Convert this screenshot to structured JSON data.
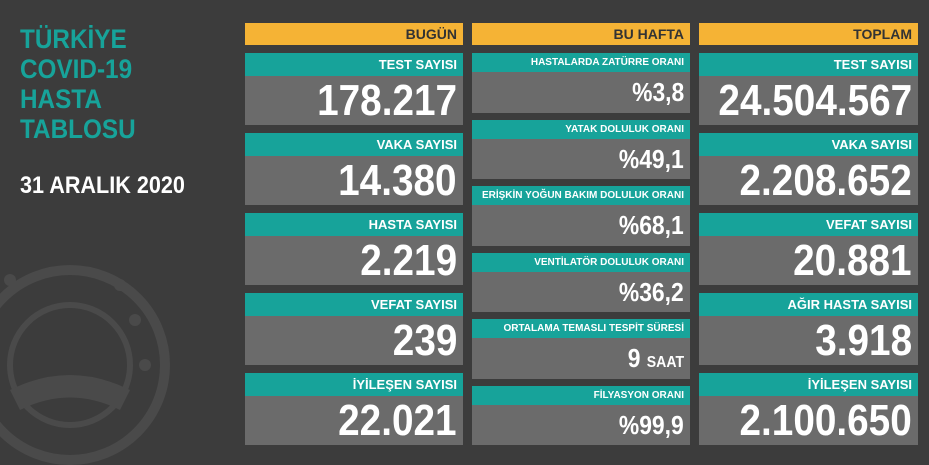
{
  "title_lines": [
    "TÜRKİYE",
    "COVID-19",
    "HASTA",
    "TABLOSU"
  ],
  "date": "31 ARALIK 2020",
  "columns": [
    {
      "header": "BUGÜN",
      "cards": [
        {
          "label": "TEST SAYISI",
          "value": "178.217"
        },
        {
          "label": "VAKA SAYISI",
          "value": "14.380"
        },
        {
          "label": "HASTA SAYISI",
          "value": "2.219"
        },
        {
          "label": "VEFAT SAYISI",
          "value": "239"
        },
        {
          "label": "İYİLEŞEN SAYISI",
          "value": "22.021"
        }
      ]
    },
    {
      "header": "BU HAFTA",
      "cards": [
        {
          "label": "HASTALARDA ZATÜRRE ORANI",
          "value": "%3,8"
        },
        {
          "label": "YATAK DOLULUK ORANI",
          "value": "%49,1"
        },
        {
          "label": "ERİŞKİN YOĞUN BAKIM DOLULUK ORANI",
          "value": "%68,1"
        },
        {
          "label": "VENTİLATÖR DOLULUK ORANI",
          "value": "%36,2"
        },
        {
          "label": "ORTALAMA TEMASLI TESPİT SÜRESİ",
          "value": "9",
          "unit": "SAAT"
        },
        {
          "label": "FİLYASYON ORANI",
          "value": "%99,9"
        }
      ]
    },
    {
      "header": "TOPLAM",
      "cards": [
        {
          "label": "TEST SAYISI",
          "value": "24.504.567"
        },
        {
          "label": "VAKA SAYISI",
          "value": "2.208.652"
        },
        {
          "label": "VEFAT SAYISI",
          "value": "20.881"
        },
        {
          "label": "AĞIR HASTA SAYISI",
          "value": "3.918"
        },
        {
          "label": "İYİLEŞEN SAYISI",
          "value": "2.100.650"
        }
      ]
    }
  ]
}
